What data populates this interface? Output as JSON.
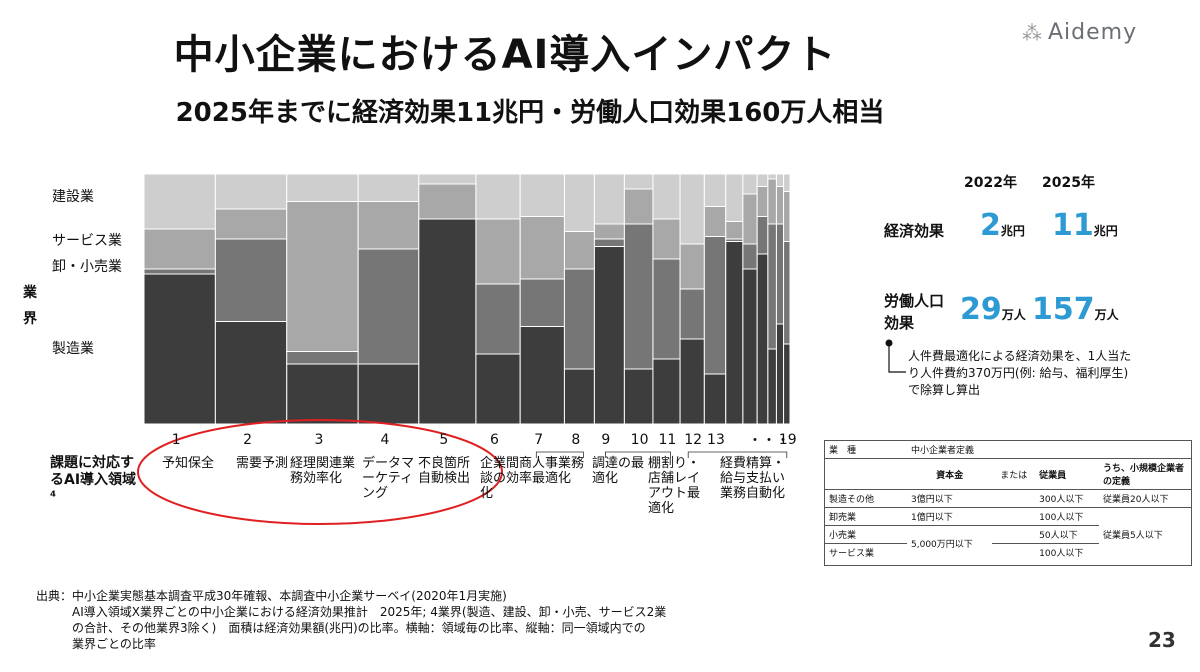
{
  "header": {
    "title": "中小企業におけるAI導入インパクト",
    "subtitle": "2025年までに経済効果11兆円・労働人口効果160万人相当",
    "logo_text": "Aidemy"
  },
  "chart_data": {
    "type": "mekko",
    "y_axis_title": "業界",
    "industries": [
      "製造業",
      "卸・小売業",
      "サービス業",
      "建設業"
    ],
    "row_title": "課題に対応するAI導入領域⁴",
    "colors": [
      "#3d3d3d",
      "#767676",
      "#a8a8a8",
      "#cecece"
    ],
    "columns": [
      {
        "num": "1",
        "label": "予知保全",
        "width": 1.0,
        "shares": [
          0.6,
          0.02,
          0.16,
          0.22
        ]
      },
      {
        "num": "2",
        "label": "需要予測",
        "width": 1.0,
        "shares": [
          0.41,
          0.33,
          0.12,
          0.14
        ]
      },
      {
        "num": "3",
        "label": "経理関連業務効率化",
        "width": 1.0,
        "shares": [
          0.24,
          0.05,
          0.6,
          0.11
        ]
      },
      {
        "num": "4",
        "label": "データマーケティング",
        "width": 0.85,
        "shares": [
          0.24,
          0.46,
          0.19,
          0.11
        ]
      },
      {
        "num": "5",
        "label": "不良箇所自動検出",
        "width": 0.8,
        "shares": [
          0.82,
          0.0,
          0.14,
          0.04
        ]
      },
      {
        "num": "6",
        "label": "企業間商談の効率化",
        "width": 0.62,
        "shares": [
          0.28,
          0.28,
          0.26,
          0.18
        ]
      },
      {
        "num": "7",
        "label": "人事業務最適化",
        "width": 0.62,
        "shares": [
          0.39,
          0.19,
          0.25,
          0.17
        ]
      },
      {
        "num": "8",
        "label": "",
        "width": 0.42,
        "shares": [
          0.22,
          0.4,
          0.15,
          0.23
        ]
      },
      {
        "num": "9",
        "label": "調達の最適化",
        "width": 0.42,
        "shares": [
          0.71,
          0.03,
          0.06,
          0.2
        ]
      },
      {
        "num": "10",
        "label": "",
        "width": 0.4,
        "shares": [
          0.22,
          0.58,
          0.14,
          0.06
        ]
      },
      {
        "num": "11",
        "label": "棚割り・店舗レイアウト最適化",
        "width": 0.38,
        "shares": [
          0.26,
          0.4,
          0.16,
          0.18
        ]
      },
      {
        "num": "12",
        "label": "",
        "width": 0.34,
        "shares": [
          0.34,
          0.2,
          0.18,
          0.28
        ]
      },
      {
        "num": "13",
        "label": "",
        "width": 0.3,
        "shares": [
          0.2,
          0.55,
          0.12,
          0.13
        ]
      },
      {
        "num": "",
        "label": "",
        "width": 0.24,
        "shares": [
          0.73,
          0.01,
          0.07,
          0.19
        ]
      },
      {
        "num": "",
        "label": "経費精算・給与支払い業務自動化",
        "width": 0.2,
        "shares": [
          0.62,
          0.1,
          0.2,
          0.08
        ]
      },
      {
        "num": "",
        "label": "",
        "width": 0.15,
        "shares": [
          0.68,
          0.15,
          0.12,
          0.05
        ]
      },
      {
        "num": "",
        "label": "",
        "width": 0.12,
        "shares": [
          0.3,
          0.5,
          0.18,
          0.02
        ]
      },
      {
        "num": "",
        "label": "",
        "width": 0.1,
        "shares": [
          0.4,
          0.4,
          0.15,
          0.05
        ]
      },
      {
        "num": "19",
        "label": "",
        "width": 0.09,
        "shares": [
          0.32,
          0.41,
          0.2,
          0.07
        ]
      }
    ],
    "ellipsis": "・・・",
    "highlight": "red ellipse around areas 1–5"
  },
  "impact": {
    "col_2022": "2022年",
    "col_2025": "2025年",
    "economic_label": "経済効果",
    "economic_2022": "2",
    "economic_2025": "11",
    "unit_trillion": "兆円",
    "labor_label_1": "労働人口",
    "labor_label_2": "効果",
    "labor_2022": "29",
    "labor_2025": "157",
    "unit_10k_people": "万人",
    "note": "人件費最適化による経済効果を、1人当たり人件費約370万円(例: 給与、福利厚生)で除算し算出"
  },
  "definition_table": {
    "header_industry": "業　種",
    "header_definition": "中小企業者定義",
    "header_capital": "資本金",
    "header_or": "または",
    "header_employees": "従業員",
    "header_small": "うち、小規模企業者の定義",
    "rows": [
      {
        "industry": "製造その他",
        "capital": "3億円以下",
        "employees": "300人以下",
        "small": "従業員20人以下"
      },
      {
        "industry": "卸売業",
        "capital": "1億円以下",
        "employees": "100人以下",
        "small": "従業員5人以下"
      },
      {
        "industry": "小売業",
        "capital": "5,000万円以下",
        "employees": "50人以下",
        "small": ""
      },
      {
        "industry": "サービス業",
        "capital": "",
        "employees": "100人以下",
        "small": ""
      }
    ]
  },
  "footer": {
    "line1": "出典：中小企業実態基本調査平成30年確報、本調査中小企業サーベイ(2020年1月実施)",
    "line2": "AI導入領域X業界ごとの中小企業における経済効果推計　2025年; 4業界(製造、建設、卸・小売、サービス2業",
    "line3": "の合計、その他業界3除く)　面積は経済効果額(兆円)の比率。横軸：領域毎の比率、縦軸：同一領域内での",
    "line4": "業界ごとの比率"
  },
  "page_number": "23"
}
